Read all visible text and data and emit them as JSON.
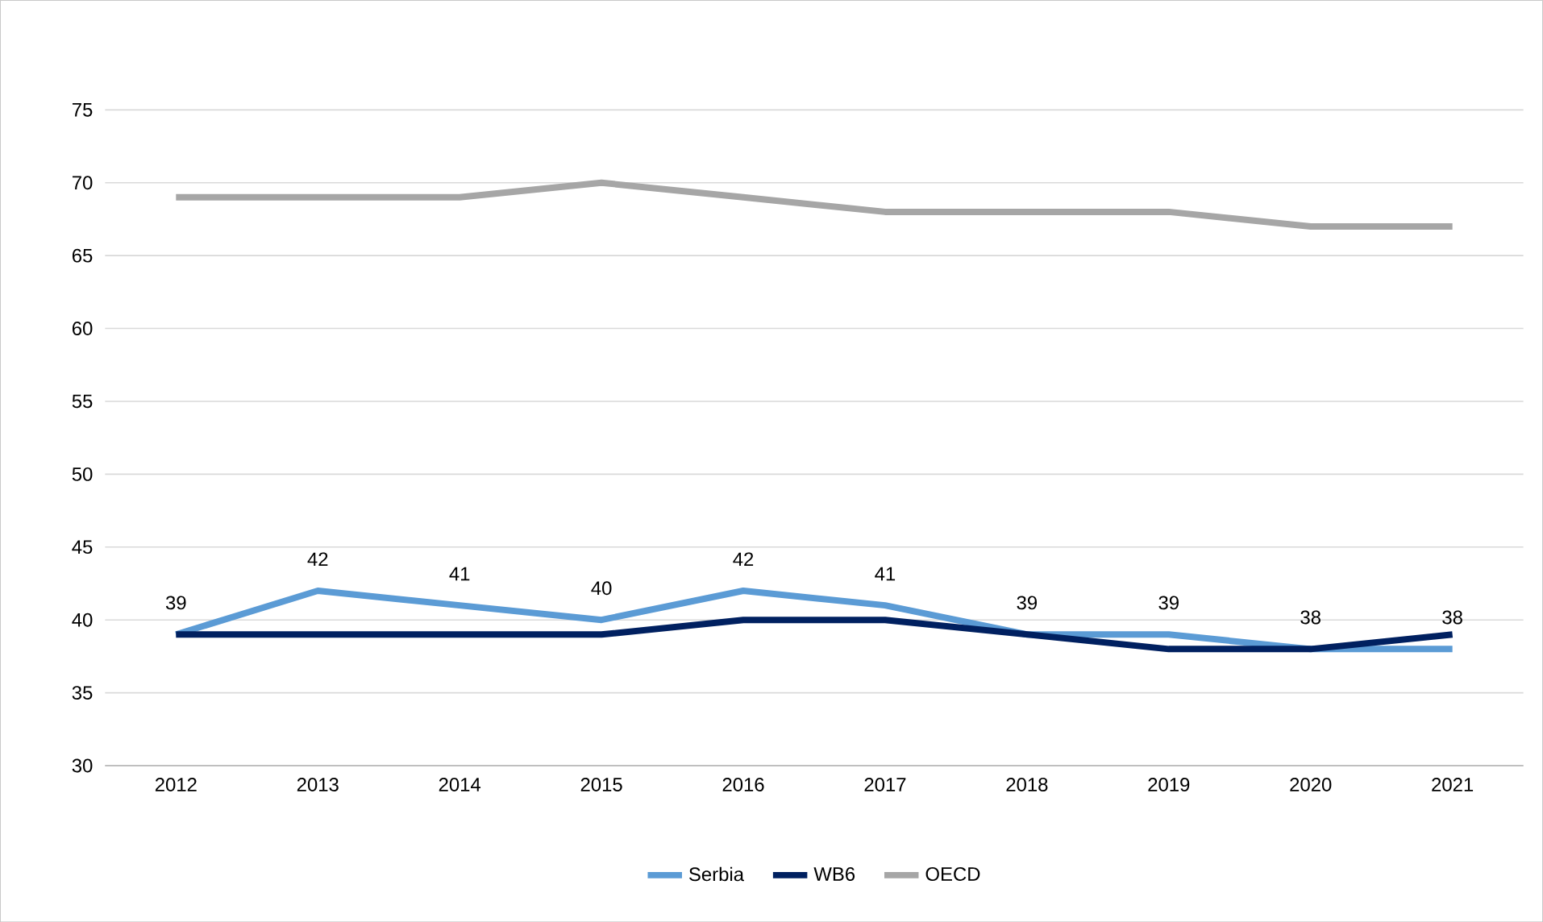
{
  "chart_data": {
    "type": "line",
    "categories": [
      "2012",
      "2013",
      "2014",
      "2015",
      "2016",
      "2017",
      "2018",
      "2019",
      "2020",
      "2021"
    ],
    "series": [
      {
        "name": "Serbia",
        "color": "#5b9bd5",
        "values": [
          39,
          42,
          41,
          40,
          42,
          41,
          39,
          39,
          38,
          38
        ],
        "value_labels": [
          "39",
          "42",
          "41",
          "40",
          "42",
          "41",
          "39",
          "39",
          "38",
          "38"
        ]
      },
      {
        "name": "WB6",
        "color": "#002060",
        "values": [
          39,
          39,
          39,
          39,
          40,
          40,
          39,
          38,
          38,
          39
        ]
      },
      {
        "name": "OECD",
        "color": "#a6a6a6",
        "values": [
          69,
          69,
          69,
          70,
          69,
          68,
          68,
          68,
          67,
          67
        ]
      }
    ],
    "ylim": [
      30,
      75
    ],
    "yticks": [
      30,
      35,
      40,
      45,
      50,
      55,
      60,
      65,
      70,
      75
    ],
    "grid": "y",
    "legend": "bottom",
    "line_style": "solid",
    "marker": "none"
  }
}
